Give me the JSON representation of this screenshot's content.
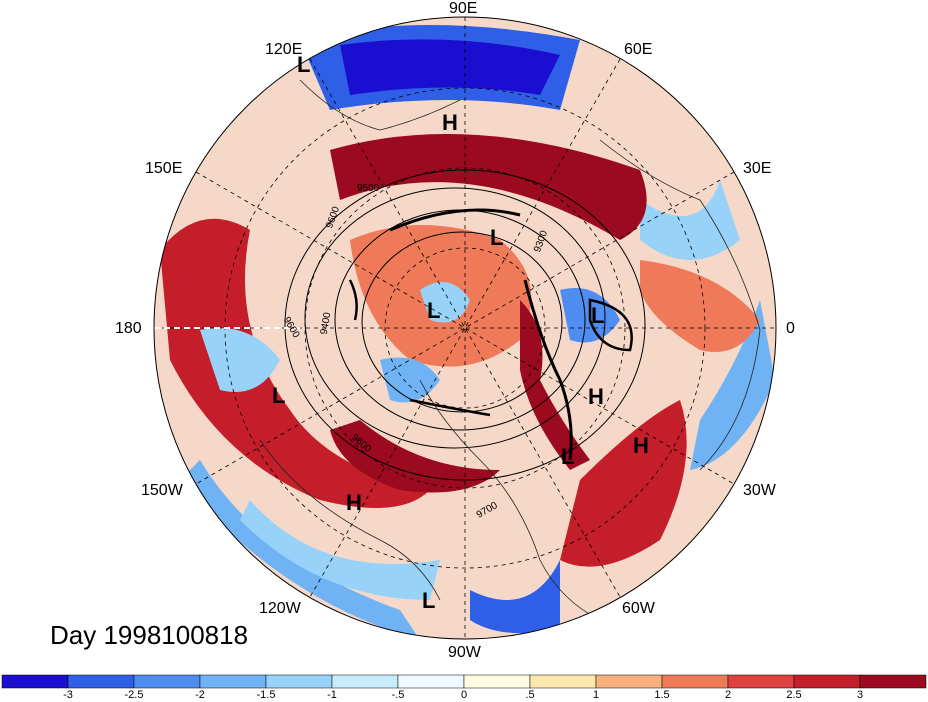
{
  "title": "Day 1998100818",
  "longitude_labels": [
    "90E",
    "60E",
    "30E",
    "0",
    "30W",
    "60W",
    "90W",
    "120W",
    "150W",
    "180",
    "150E",
    "120E"
  ],
  "pressure_centers": [
    {
      "label": "L"
    },
    {
      "label": "H"
    },
    {
      "label": "L"
    },
    {
      "label": "L"
    },
    {
      "label": "L"
    },
    {
      "label": "L"
    },
    {
      "label": "H"
    },
    {
      "label": "H"
    },
    {
      "label": "L"
    },
    {
      "label": "H"
    },
    {
      "label": "L"
    }
  ],
  "contour_labels": [
    "9500",
    "9600",
    "9300",
    "9400",
    "9600",
    "9600",
    "9700"
  ],
  "colorbar": {
    "tick_labels": [
      "-3",
      "-2.5",
      "-2",
      "-1.5",
      "-1",
      "-.5",
      "0",
      ".5",
      "1",
      "1.5",
      "2",
      "2.5",
      "3"
    ],
    "colors": [
      "#1a0fd1",
      "#2f5fe6",
      "#4f8ef0",
      "#6fb3f5",
      "#98d2f8",
      "#c8ecfb",
      "#eefaff",
      "#fffbe3",
      "#fde7ae",
      "#f8b07e",
      "#ef7a5a",
      "#e04040",
      "#c41e2a",
      "#9b0a1e"
    ]
  }
}
